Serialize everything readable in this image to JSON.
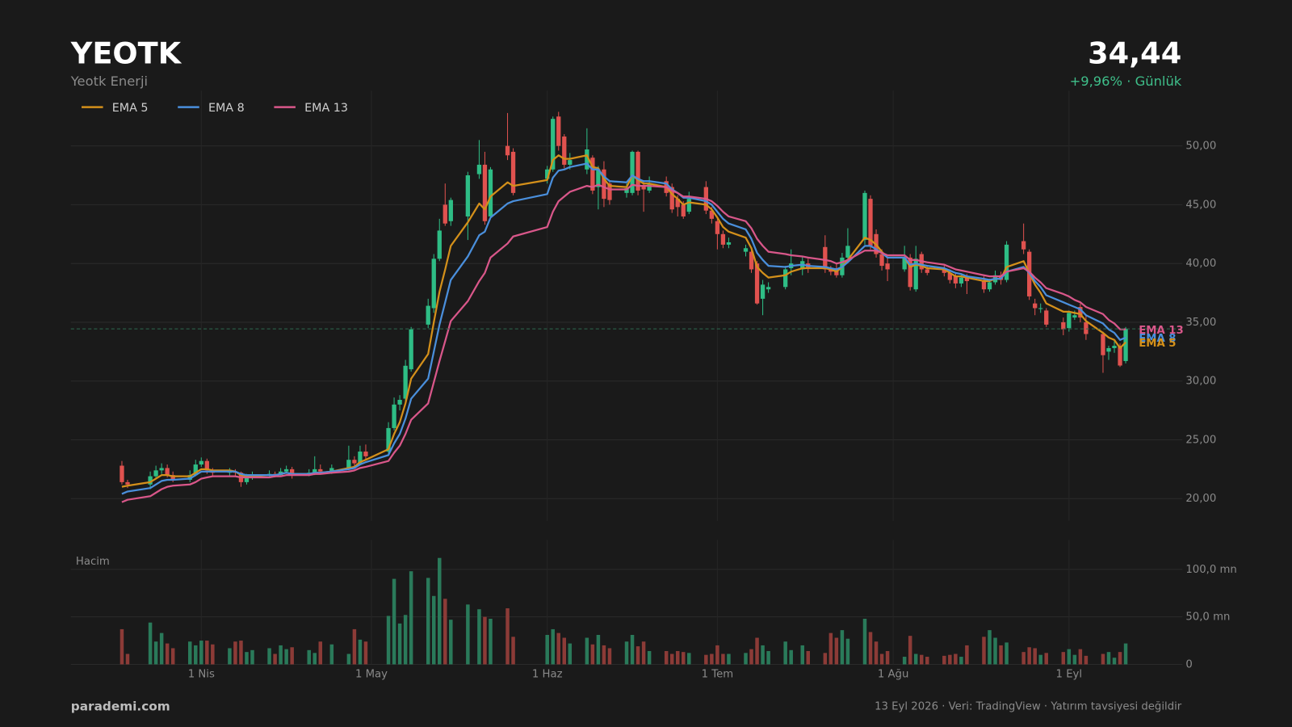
{
  "header": {
    "title": "YEOTK",
    "subtitle": "Yeotk Enerji",
    "price": "34,44",
    "change": "+9,96%  ·  Günlük"
  },
  "footer": {
    "brand": "parademi.com",
    "note": "13 Eyl 2026  ·  Veri: TradingView  ·  Yatırım tavsiyesi değildir"
  },
  "chart_data": {
    "type": "candlestick",
    "up_color": "#2ebd85",
    "down_color": "#e0524f",
    "grid": true,
    "legend": "top-left",
    "last_price_line": true,
    "ylim": [
      18.1,
      54.7
    ],
    "yticks": [
      {
        "value": 20,
        "label": "20,00"
      },
      {
        "value": 25,
        "label": "25,00"
      },
      {
        "value": 30,
        "label": "30,00"
      },
      {
        "value": 35,
        "label": "35,00"
      },
      {
        "value": 40,
        "label": "40,00"
      },
      {
        "value": 45,
        "label": "45,00"
      },
      {
        "value": 50,
        "label": "50,00"
      }
    ],
    "xlim": [
      "03-09",
      "09-21"
    ],
    "xticks": [
      {
        "value": "04-01",
        "label": "1 Nis"
      },
      {
        "value": "05-01",
        "label": "1 May"
      },
      {
        "value": "06-01",
        "label": "1 Haz"
      },
      {
        "value": "07-01",
        "label": "1 Tem"
      },
      {
        "value": "08-01",
        "label": "1 Ağu"
      },
      {
        "value": "09-01",
        "label": "1 Eyl"
      }
    ],
    "x": [
      "03-18",
      "03-19",
      "03-23",
      "03-24",
      "03-25",
      "03-26",
      "03-27",
      "03-30",
      "03-31",
      "04-01",
      "04-02",
      "04-03",
      "04-06",
      "04-07",
      "04-08",
      "04-09",
      "04-10",
      "04-13",
      "04-14",
      "04-15",
      "04-16",
      "04-17",
      "04-20",
      "04-21",
      "04-22",
      "04-24",
      "04-27",
      "04-28",
      "04-29",
      "04-30",
      "05-04",
      "05-05",
      "05-06",
      "05-07",
      "05-08",
      "05-11",
      "05-12",
      "05-13",
      "05-14",
      "05-15",
      "05-18",
      "05-20",
      "05-21",
      "05-22",
      "05-25",
      "05-26",
      "06-01",
      "06-02",
      "06-03",
      "06-04",
      "06-05",
      "06-08",
      "06-09",
      "06-10",
      "06-11",
      "06-12",
      "06-15",
      "06-16",
      "06-17",
      "06-18",
      "06-19",
      "06-22",
      "06-23",
      "06-24",
      "06-25",
      "06-26",
      "06-29",
      "06-30",
      "07-01",
      "07-02",
      "07-03",
      "07-06",
      "07-07",
      "07-08",
      "07-09",
      "07-10",
      "07-13",
      "07-14",
      "07-16",
      "07-17",
      "07-20",
      "07-21",
      "07-22",
      "07-23",
      "07-24",
      "07-27",
      "07-28",
      "07-29",
      "07-30",
      "07-31",
      "08-03",
      "08-04",
      "08-05",
      "08-06",
      "08-07",
      "08-10",
      "08-11",
      "08-12",
      "08-13",
      "08-14",
      "08-17",
      "08-18",
      "08-19",
      "08-20",
      "08-21",
      "08-24",
      "08-25",
      "08-26",
      "08-27",
      "08-28",
      "08-31",
      "09-01",
      "09-02",
      "09-03",
      "09-04",
      "09-07",
      "09-08",
      "09-09",
      "09-10",
      "09-11"
    ],
    "open": [
      22.8,
      21.4,
      21.2,
      21.9,
      22.4,
      22.6,
      22.0,
      21.6,
      22.0,
      22.9,
      23.2,
      22.4,
      22.2,
      22.3,
      22.2,
      21.4,
      21.8,
      22.0,
      22.1,
      22.0,
      22.3,
      22.5,
      22.0,
      22.2,
      22.5,
      22.3,
      22.6,
      23.3,
      23.0,
      24.0,
      24.0,
      26.0,
      28.0,
      28.5,
      31.0,
      34.8,
      36.2,
      40.4,
      45.0,
      43.6,
      44.0,
      47.6,
      48.4,
      44.0,
      50.0,
      49.5,
      47.2,
      48.0,
      52.5,
      50.8,
      48.4,
      48.0,
      49.0,
      46.5,
      48.0,
      46.8,
      46.0,
      46.0,
      49.5,
      46.6,
      46.2,
      47.0,
      46.5,
      45.5,
      45.0,
      44.4,
      46.5,
      44.5,
      43.6,
      42.5,
      41.6,
      41.0,
      41.0,
      40.0,
      37.0,
      37.8,
      38.0,
      39.6,
      39.5,
      40.0,
      41.4,
      39.5,
      39.6,
      39.0,
      40.5,
      42.0,
      45.5,
      42.5,
      40.8,
      40.0,
      39.5,
      40.5,
      37.8,
      40.8,
      39.5,
      39.6,
      39.2,
      38.9,
      38.3,
      38.8,
      38.6,
      37.8,
      38.4,
      39.0,
      38.6,
      41.9,
      41.0,
      36.6,
      36.2,
      36.0,
      35.0,
      34.5,
      35.4,
      36.3,
      35.0,
      34.0,
      32.5,
      32.8,
      33.0,
      31.7
    ],
    "high": [
      23.2,
      21.6,
      22.3,
      22.8,
      23.0,
      22.9,
      22.3,
      22.4,
      23.3,
      23.5,
      23.4,
      22.6,
      22.6,
      22.5,
      22.3,
      22.1,
      22.3,
      22.4,
      22.3,
      22.6,
      22.8,
      22.7,
      22.5,
      23.6,
      22.9,
      22.9,
      24.5,
      23.6,
      24.5,
      24.6,
      26.5,
      28.6,
      28.8,
      31.8,
      34.6,
      37.0,
      40.8,
      43.8,
      46.8,
      45.6,
      47.8,
      50.5,
      49.5,
      48.2,
      52.8,
      49.8,
      48.3,
      52.5,
      52.9,
      51.0,
      49.4,
      51.5,
      49.2,
      48.3,
      48.7,
      47.0,
      46.8,
      49.6,
      49.6,
      47.0,
      47.4,
      47.4,
      46.8,
      45.8,
      45.3,
      46.1,
      47.0,
      44.8,
      44.0,
      42.8,
      42.2,
      41.6,
      41.4,
      40.2,
      38.6,
      38.4,
      39.8,
      41.2,
      40.6,
      40.4,
      42.4,
      39.8,
      40.0,
      40.9,
      43.0,
      46.2,
      45.8,
      42.9,
      41.2,
      40.6,
      41.5,
      40.8,
      41.5,
      41.0,
      39.8,
      39.8,
      39.5,
      39.2,
      39.1,
      39.1,
      38.9,
      38.7,
      39.4,
      39.3,
      41.9,
      43.4,
      41.2,
      37.0,
      36.6,
      36.2,
      35.4,
      36.0,
      36.0,
      36.6,
      35.6,
      34.2,
      33.0,
      33.4,
      33.2,
      34.6
    ],
    "low": [
      21.2,
      20.9,
      20.8,
      21.7,
      22.1,
      21.8,
      21.4,
      21.4,
      21.9,
      22.7,
      22.1,
      21.9,
      21.9,
      21.9,
      21.0,
      21.2,
      21.6,
      21.8,
      21.8,
      21.9,
      22.1,
      21.7,
      21.9,
      22.0,
      22.1,
      22.1,
      22.4,
      22.7,
      22.9,
      23.3,
      23.8,
      25.8,
      27.5,
      28.2,
      30.8,
      34.5,
      35.8,
      40.2,
      43.2,
      43.2,
      42.0,
      47.2,
      43.3,
      43.8,
      48.8,
      45.8,
      46.8,
      47.8,
      49.6,
      48.1,
      48.0,
      47.6,
      45.9,
      44.6,
      44.8,
      45.0,
      45.6,
      45.8,
      45.8,
      44.4,
      46.0,
      45.7,
      44.3,
      44.0,
      43.8,
      44.2,
      44.2,
      43.4,
      41.2,
      41.3,
      41.3,
      40.6,
      39.2,
      36.5,
      35.6,
      37.5,
      37.8,
      39.0,
      39.0,
      39.2,
      39.2,
      39.0,
      38.8,
      38.8,
      40.2,
      41.6,
      41.2,
      40.5,
      39.4,
      38.5,
      39.3,
      37.7,
      37.6,
      39.2,
      39.0,
      38.9,
      38.3,
      37.9,
      38.0,
      37.4,
      37.5,
      37.6,
      38.2,
      38.2,
      38.4,
      40.8,
      36.9,
      35.6,
      35.8,
      34.6,
      33.9,
      34.2,
      35.2,
      35.0,
      33.5,
      30.7,
      31.8,
      32.4,
      31.2,
      31.5
    ],
    "close": [
      21.4,
      21.2,
      21.9,
      22.4,
      22.6,
      22.0,
      21.6,
      22.0,
      22.9,
      23.2,
      22.4,
      22.2,
      22.3,
      22.2,
      21.4,
      21.8,
      22.0,
      22.1,
      22.0,
      22.3,
      22.5,
      22.0,
      22.2,
      22.5,
      22.3,
      22.6,
      23.3,
      23.0,
      24.0,
      23.6,
      26.0,
      28.0,
      28.4,
      31.3,
      34.4,
      36.4,
      40.4,
      42.8,
      43.4,
      45.4,
      47.5,
      48.4,
      43.6,
      48.0,
      49.2,
      46.0,
      48.0,
      52.3,
      50.0,
      48.4,
      48.8,
      49.7,
      46.2,
      48.0,
      45.5,
      45.4,
      46.4,
      49.5,
      46.2,
      46.3,
      46.8,
      46.0,
      44.6,
      44.8,
      44.0,
      45.5,
      44.5,
      43.8,
      42.5,
      41.6,
      41.8,
      41.3,
      39.5,
      36.6,
      38.2,
      38.0,
      39.5,
      40.0,
      40.2,
      39.6,
      39.5,
      39.3,
      39.0,
      40.5,
      41.5,
      46.0,
      41.5,
      40.8,
      39.8,
      39.5,
      40.5,
      38.0,
      40.4,
      39.5,
      39.2,
      39.2,
      38.6,
      38.3,
      38.8,
      38.5,
      37.8,
      38.4,
      39.0,
      38.6,
      41.6,
      41.2,
      37.2,
      36.2,
      36.2,
      34.8,
      34.4,
      35.8,
      35.6,
      35.4,
      34.0,
      32.2,
      32.8,
      33.0,
      31.32,
      34.44
    ],
    "series": [
      {
        "name": "EMA 5",
        "color": "#d4901a",
        "values": [
          21.0,
          21.1,
          21.4,
          21.7,
          22.0,
          22.0,
          21.9,
          21.9,
          22.2,
          22.5,
          22.5,
          22.4,
          22.4,
          22.3,
          22.0,
          21.9,
          21.9,
          22.0,
          22.0,
          22.1,
          22.2,
          22.1,
          22.1,
          22.2,
          22.2,
          22.3,
          22.6,
          22.7,
          23.1,
          23.3,
          24.2,
          25.5,
          26.5,
          28.1,
          30.2,
          32.3,
          35.0,
          37.6,
          39.5,
          41.5,
          43.5,
          45.1,
          44.6,
          45.7,
          46.9,
          46.6,
          47.1,
          48.8,
          49.2,
          48.9,
          48.9,
          49.2,
          48.2,
          48.1,
          47.2,
          46.6,
          46.5,
          47.5,
          47.1,
          46.8,
          46.8,
          46.5,
          45.9,
          45.5,
          45.0,
          45.2,
          45.0,
          44.6,
          43.9,
          43.1,
          42.7,
          42.2,
          41.3,
          39.7,
          39.2,
          38.8,
          39.0,
          39.3,
          39.6,
          39.6,
          39.6,
          39.5,
          39.3,
          39.7,
          40.3,
          42.2,
          42.0,
          41.6,
          41.0,
          40.5,
          40.5,
          39.7,
          39.9,
          39.8,
          39.6,
          39.5,
          39.2,
          38.9,
          38.9,
          38.8,
          38.5,
          38.5,
          38.7,
          38.7,
          39.7,
          40.2,
          39.2,
          38.2,
          37.5,
          36.6,
          35.9,
          35.9,
          35.8,
          35.7,
          35.1,
          34.1,
          33.7,
          33.5,
          32.8,
          33.3
        ]
      },
      {
        "name": "EMA 8",
        "color": "#4a8fdc",
        "values": [
          20.4,
          20.6,
          20.9,
          21.2,
          21.5,
          21.6,
          21.6,
          21.7,
          22.0,
          22.3,
          22.3,
          22.3,
          22.3,
          22.3,
          22.1,
          22.0,
          22.0,
          22.0,
          22.0,
          22.1,
          22.2,
          22.1,
          22.1,
          22.2,
          22.2,
          22.3,
          22.5,
          22.6,
          22.9,
          23.1,
          23.7,
          24.7,
          25.5,
          26.8,
          28.5,
          30.2,
          32.5,
          34.8,
          36.7,
          38.6,
          40.6,
          42.4,
          42.7,
          43.9,
          45.1,
          45.3,
          45.9,
          47.3,
          47.9,
          48.0,
          48.2,
          48.5,
          48.0,
          48.0,
          47.4,
          47.0,
          46.9,
          47.5,
          47.2,
          47.0,
          47.0,
          46.8,
          46.3,
          46.0,
          45.6,
          45.6,
          45.3,
          45.0,
          44.4,
          43.8,
          43.4,
          42.9,
          42.1,
          40.9,
          40.3,
          39.8,
          39.7,
          39.8,
          39.9,
          39.8,
          39.7,
          39.6,
          39.5,
          39.7,
          40.1,
          41.5,
          41.5,
          41.2,
          40.9,
          40.5,
          40.5,
          39.9,
          40.0,
          39.9,
          39.8,
          39.6,
          39.4,
          39.2,
          39.1,
          38.9,
          38.7,
          38.6,
          38.7,
          38.7,
          39.3,
          39.7,
          39.2,
          38.5,
          38.0,
          37.3,
          36.7,
          36.5,
          36.3,
          36.1,
          35.6,
          34.9,
          34.4,
          34.1,
          33.5,
          33.7
        ]
      },
      {
        "name": "EMA 13",
        "color": "#d9578a",
        "values": [
          19.7,
          19.9,
          20.2,
          20.5,
          20.8,
          21.0,
          21.1,
          21.2,
          21.4,
          21.7,
          21.8,
          21.9,
          21.9,
          21.9,
          21.8,
          21.8,
          21.8,
          21.8,
          21.9,
          21.9,
          22.0,
          22.0,
          22.0,
          22.1,
          22.1,
          22.2,
          22.3,
          22.4,
          22.6,
          22.7,
          23.2,
          23.9,
          24.5,
          25.5,
          26.7,
          28.1,
          29.9,
          31.7,
          33.4,
          35.1,
          36.8,
          38.5,
          39.2,
          40.5,
          41.7,
          42.3,
          43.1,
          44.4,
          45.3,
          45.7,
          46.1,
          46.6,
          46.5,
          46.7,
          46.5,
          46.3,
          46.3,
          46.7,
          46.6,
          46.6,
          46.6,
          46.5,
          46.2,
          46.0,
          45.7,
          45.7,
          45.5,
          45.3,
          44.9,
          44.4,
          44.0,
          43.6,
          43.0,
          42.1,
          41.5,
          41.0,
          40.8,
          40.7,
          40.6,
          40.5,
          40.3,
          40.2,
          40.0,
          40.1,
          40.3,
          41.1,
          41.1,
          41.1,
          40.9,
          40.7,
          40.7,
          40.3,
          40.3,
          40.2,
          40.1,
          39.9,
          39.7,
          39.5,
          39.4,
          39.3,
          39.0,
          38.9,
          38.9,
          38.9,
          39.3,
          39.6,
          39.3,
          38.8,
          38.4,
          37.9,
          37.4,
          37.2,
          36.9,
          36.7,
          36.3,
          35.7,
          35.2,
          34.9,
          34.4,
          34.4
        ]
      }
    ],
    "volume": {
      "title": "Hacim",
      "up_color": "#2a7a5a",
      "down_color": "#8c3b37",
      "ylim": [
        0,
        131
      ],
      "yticks": [
        0,
        {
          "value": 50,
          "label": "50,0 mn"
        },
        {
          "value": 100,
          "label": "100,0 mn"
        }
      ],
      "values": [
        37,
        11,
        44,
        24,
        33,
        22,
        17,
        24,
        20,
        25,
        25,
        21,
        17,
        24,
        25,
        13,
        15,
        17,
        11,
        20,
        16,
        18,
        15,
        12,
        24,
        21,
        11,
        37,
        26,
        24,
        51,
        90,
        43,
        52,
        98,
        91,
        72,
        112,
        69,
        47,
        63,
        58,
        50,
        48,
        59,
        29,
        31,
        37,
        33,
        28,
        22,
        28,
        21,
        31,
        20,
        17,
        24,
        31,
        19,
        24,
        14,
        14,
        11,
        14,
        13,
        12,
        10,
        11,
        20,
        11,
        11,
        12,
        16,
        28,
        20,
        14,
        24,
        15,
        20,
        14,
        12,
        33,
        28,
        36,
        27,
        48,
        34,
        24,
        11,
        14,
        8,
        30,
        11,
        10,
        8,
        9,
        10,
        11,
        8,
        20,
        29,
        36,
        28,
        20,
        23,
        13,
        18,
        17,
        10,
        12,
        13,
        16,
        10,
        16,
        9,
        11,
        13,
        7,
        13,
        22
      ]
    }
  }
}
